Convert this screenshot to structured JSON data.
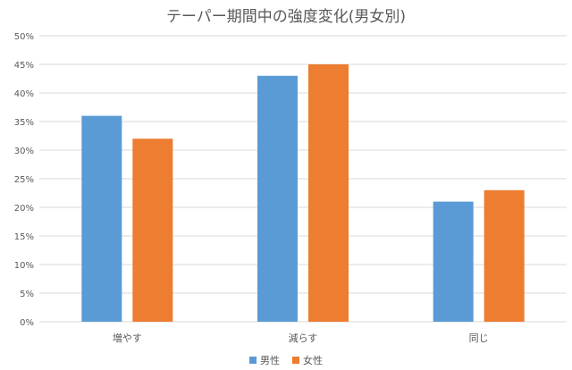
{
  "chart_data": {
    "type": "bar",
    "title": "テーパー期間中の強度変化(男女別)",
    "categories": [
      "増やす",
      "減らす",
      "同じ"
    ],
    "series": [
      {
        "name": "男性",
        "values": [
          36,
          43,
          21
        ],
        "color": "#5B9BD5"
      },
      {
        "name": "女性",
        "values": [
          32,
          45,
          23
        ],
        "color": "#ED7D31"
      }
    ],
    "y_ticks": [
      "0%",
      "5%",
      "10%",
      "15%",
      "20%",
      "25%",
      "30%",
      "35%",
      "40%",
      "45%",
      "50%"
    ],
    "ylim": [
      0,
      50
    ],
    "grid": true,
    "legend_position": "bottom",
    "grid_color": "#D9D9D9"
  }
}
